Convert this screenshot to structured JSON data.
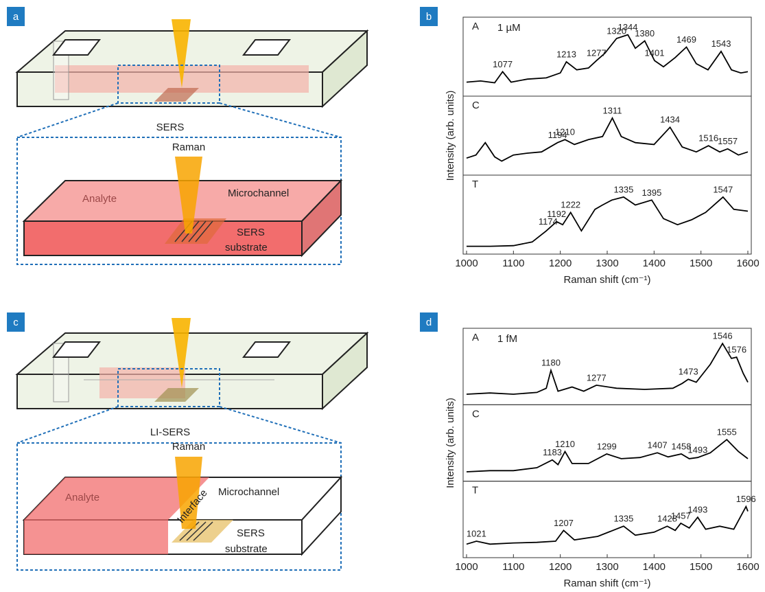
{
  "panels": [
    {
      "label": "a",
      "caption": "SERS",
      "raman": "Raman",
      "analyte": "Analyte",
      "channel": "Microchannel",
      "substrate": [
        "SERS",
        "substrate"
      ]
    },
    {
      "label": "c",
      "caption": "LI-SERS",
      "raman": "Raman",
      "analyte": "Analyte",
      "channel": "Microchannel",
      "interface": "Interface",
      "substrate": [
        "SERS",
        "substrate"
      ]
    }
  ],
  "chart_data": [
    {
      "type": "line",
      "label": "b",
      "concentration": "1 µM",
      "xlabel": "Raman shift (cm⁻¹)",
      "ylabel": "Intensity (arb. units)",
      "xlim": [
        1000,
        1600
      ],
      "xticks": [
        1000,
        1100,
        1200,
        1300,
        1400,
        1500,
        1600
      ],
      "series": [
        {
          "name": "A",
          "color": "#000000",
          "x": [
            1000,
            1030,
            1060,
            1077,
            1095,
            1130,
            1170,
            1200,
            1213,
            1235,
            1260,
            1277,
            1295,
            1320,
            1344,
            1360,
            1380,
            1401,
            1420,
            1445,
            1469,
            1490,
            1515,
            1543,
            1565,
            1585,
            1600
          ],
          "values": [
            0.15,
            0.17,
            0.14,
            0.32,
            0.15,
            0.2,
            0.22,
            0.3,
            0.48,
            0.35,
            0.38,
            0.5,
            0.62,
            0.86,
            0.92,
            0.7,
            0.82,
            0.5,
            0.4,
            0.55,
            0.72,
            0.45,
            0.35,
            0.65,
            0.35,
            0.3,
            0.32
          ],
          "peaks": [
            1077,
            1213,
            1277,
            1320,
            1344,
            1380,
            1401,
            1469,
            1543
          ]
        },
        {
          "name": "C",
          "color": "#000000",
          "x": [
            1000,
            1020,
            1040,
            1060,
            1075,
            1100,
            1130,
            1160,
            1194,
            1210,
            1230,
            1260,
            1290,
            1311,
            1330,
            1360,
            1400,
            1434,
            1460,
            1490,
            1516,
            1540,
            1557,
            1580,
            1600
          ],
          "values": [
            0.2,
            0.25,
            0.45,
            0.22,
            0.15,
            0.25,
            0.28,
            0.3,
            0.45,
            0.5,
            0.42,
            0.5,
            0.55,
            0.85,
            0.55,
            0.45,
            0.42,
            0.7,
            0.38,
            0.3,
            0.4,
            0.3,
            0.35,
            0.25,
            0.3
          ],
          "peaks": [
            1194,
            1210,
            1311,
            1434,
            1516,
            1557
          ]
        },
        {
          "name": "T",
          "color": "#000000",
          "x": [
            1000,
            1050,
            1100,
            1140,
            1170,
            1192,
            1205,
            1222,
            1245,
            1274,
            1290,
            1310,
            1335,
            1360,
            1395,
            1420,
            1450,
            1480,
            1510,
            1547,
            1570,
            1600
          ],
          "values": [
            0.05,
            0.05,
            0.06,
            0.12,
            0.3,
            0.45,
            0.4,
            0.6,
            0.3,
            0.65,
            0.72,
            0.8,
            0.85,
            0.72,
            0.8,
            0.5,
            0.4,
            0.48,
            0.6,
            0.85,
            0.65,
            0.62
          ],
          "peaks": [
            1192,
            1222,
            1174,
            1335,
            1395,
            1547
          ]
        }
      ]
    },
    {
      "type": "line",
      "label": "d",
      "concentration": "1 fM",
      "xlabel": "Raman shift (cm⁻¹)",
      "ylabel": "Intensity (arb. units)",
      "xlim": [
        1000,
        1600
      ],
      "xticks": [
        1000,
        1100,
        1200,
        1300,
        1400,
        1500,
        1600
      ],
      "series": [
        {
          "name": "A",
          "color": "#000000",
          "x": [
            1000,
            1050,
            1100,
            1150,
            1170,
            1180,
            1195,
            1225,
            1250,
            1277,
            1320,
            1380,
            1440,
            1460,
            1473,
            1490,
            1520,
            1546,
            1565,
            1576,
            1590,
            1600
          ],
          "values": [
            0.1,
            0.12,
            0.1,
            0.13,
            0.2,
            0.5,
            0.15,
            0.22,
            0.15,
            0.25,
            0.2,
            0.18,
            0.2,
            0.28,
            0.35,
            0.3,
            0.6,
            0.95,
            0.7,
            0.72,
            0.45,
            0.3
          ],
          "peaks": [
            1180,
            1277,
            1473,
            1546,
            1576
          ]
        },
        {
          "name": "C",
          "color": "#000000",
          "x": [
            1000,
            1050,
            1100,
            1150,
            1183,
            1195,
            1210,
            1225,
            1260,
            1299,
            1330,
            1370,
            1407,
            1430,
            1458,
            1475,
            1493,
            1520,
            1555,
            1580,
            1600
          ],
          "values": [
            0.08,
            0.1,
            0.1,
            0.15,
            0.28,
            0.2,
            0.42,
            0.22,
            0.22,
            0.38,
            0.3,
            0.32,
            0.4,
            0.33,
            0.38,
            0.3,
            0.32,
            0.4,
            0.62,
            0.42,
            0.3
          ],
          "peaks": [
            1183,
            1210,
            1299,
            1407,
            1458,
            1493,
            1555
          ]
        },
        {
          "name": "T",
          "color": "#000000",
          "x": [
            1000,
            1021,
            1050,
            1100,
            1150,
            1190,
            1207,
            1230,
            1280,
            1335,
            1360,
            1400,
            1428,
            1445,
            1457,
            1475,
            1493,
            1510,
            1540,
            1570,
            1596,
            1600
          ],
          "values": [
            0.15,
            0.2,
            0.15,
            0.17,
            0.18,
            0.2,
            0.38,
            0.22,
            0.28,
            0.45,
            0.3,
            0.35,
            0.45,
            0.38,
            0.5,
            0.42,
            0.6,
            0.4,
            0.45,
            0.4,
            0.78,
            0.7
          ],
          "peaks": [
            1021,
            1207,
            1335,
            1428,
            1457,
            1493,
            1596
          ]
        }
      ]
    }
  ]
}
